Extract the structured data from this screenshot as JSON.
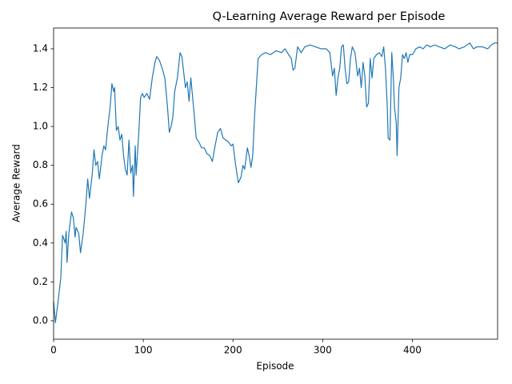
{
  "chart_data": {
    "type": "line",
    "title": "Q-Learning Average Reward per Episode",
    "x_label": "Episode",
    "y_label": "Average Reward",
    "color": "#1f77b4",
    "xlim": [
      0,
      495
    ],
    "ylim": [
      -0.095,
      1.507
    ],
    "xticks": [
      0,
      100,
      200,
      300,
      400
    ],
    "yticks": [
      {
        "value": 0,
        "label": "0.0"
      },
      0.2,
      0.4,
      0.6,
      0.8,
      {
        "value": 1,
        "label": "1.0"
      },
      1.2,
      1.4
    ],
    "x": [
      0,
      2,
      5,
      8,
      10,
      13,
      14,
      15,
      17,
      20,
      22,
      24,
      25,
      28,
      30,
      33,
      36,
      38,
      40,
      43,
      45,
      47,
      49,
      51,
      54,
      56,
      58,
      60,
      63,
      65,
      67,
      68,
      70,
      72,
      74,
      76,
      78,
      80,
      82,
      84,
      86,
      88,
      89,
      91,
      92,
      95,
      97,
      99,
      101,
      104,
      107,
      110,
      113,
      115,
      118,
      121,
      124,
      127,
      129,
      131,
      133,
      135,
      138,
      141,
      143,
      145,
      147,
      149,
      151,
      153,
      155,
      157,
      159,
      162,
      165,
      168,
      171,
      174,
      177,
      180,
      183,
      186,
      189,
      192,
      195,
      198,
      200,
      203,
      206,
      209,
      211,
      213,
      216,
      218,
      220,
      222,
      224,
      226,
      228,
      232,
      236,
      242,
      248,
      254,
      258,
      262,
      265,
      267,
      269,
      272,
      276,
      280,
      286,
      292,
      298,
      304,
      308,
      311,
      313,
      315,
      317,
      319,
      321,
      323,
      325,
      327,
      329,
      331,
      333,
      336,
      339,
      341,
      343,
      345,
      347,
      349,
      351,
      353,
      355,
      357,
      360,
      363,
      366,
      368,
      370,
      372,
      373,
      375,
      377,
      379,
      380,
      382,
      383,
      385,
      387,
      389,
      391,
      393,
      395,
      397,
      400,
      404,
      408,
      412,
      416,
      420,
      425,
      430,
      436,
      442,
      448,
      452,
      458,
      464,
      468,
      472,
      478,
      484,
      488,
      492,
      495
    ],
    "values": [
      0.1,
      -0.01,
      0.1,
      0.22,
      0.44,
      0.4,
      0.46,
      0.3,
      0.45,
      0.56,
      0.53,
      0.43,
      0.48,
      0.45,
      0.35,
      0.45,
      0.6,
      0.73,
      0.63,
      0.75,
      0.88,
      0.8,
      0.82,
      0.73,
      0.85,
      0.9,
      0.88,
      0.98,
      1.1,
      1.22,
      1.18,
      1.2,
      0.98,
      1.0,
      0.93,
      0.96,
      0.85,
      0.78,
      0.75,
      0.93,
      0.76,
      0.8,
      0.64,
      0.9,
      0.75,
      0.97,
      1.15,
      1.17,
      1.15,
      1.17,
      1.14,
      1.25,
      1.33,
      1.36,
      1.34,
      1.3,
      1.25,
      1.1,
      0.97,
      1.0,
      1.05,
      1.18,
      1.25,
      1.38,
      1.36,
      1.28,
      1.2,
      1.23,
      1.13,
      1.25,
      1.15,
      1.05,
      0.94,
      0.92,
      0.89,
      0.89,
      0.86,
      0.85,
      0.82,
      0.9,
      0.97,
      0.99,
      0.94,
      0.93,
      0.92,
      0.9,
      0.91,
      0.8,
      0.71,
      0.74,
      0.8,
      0.78,
      0.89,
      0.85,
      0.79,
      0.85,
      1.05,
      1.2,
      1.35,
      1.37,
      1.38,
      1.37,
      1.39,
      1.38,
      1.4,
      1.37,
      1.35,
      1.29,
      1.3,
      1.41,
      1.38,
      1.41,
      1.42,
      1.41,
      1.4,
      1.4,
      1.38,
      1.26,
      1.3,
      1.16,
      1.25,
      1.3,
      1.41,
      1.42,
      1.3,
      1.22,
      1.23,
      1.35,
      1.41,
      1.38,
      1.26,
      1.3,
      1.2,
      1.33,
      1.26,
      1.1,
      1.12,
      1.35,
      1.25,
      1.35,
      1.37,
      1.38,
      1.36,
      1.41,
      1.3,
      1.1,
      0.94,
      0.93,
      1.38,
      1.23,
      1.1,
      1.02,
      0.85,
      1.2,
      1.25,
      1.37,
      1.35,
      1.38,
      1.33,
      1.37,
      1.37,
      1.4,
      1.41,
      1.4,
      1.42,
      1.41,
      1.42,
      1.41,
      1.4,
      1.42,
      1.41,
      1.4,
      1.41,
      1.43,
      1.4,
      1.41,
      1.41,
      1.4,
      1.42,
      1.43,
      1.43
    ]
  }
}
